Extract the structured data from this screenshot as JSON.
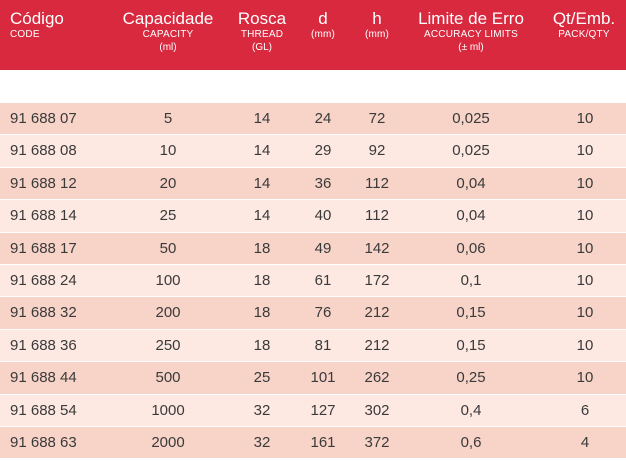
{
  "header": {
    "code": {
      "main": "Código",
      "sub": "CODE"
    },
    "capacity": {
      "main": "Capacidade",
      "sub": "CAPACITY",
      "sub2": "(ml)"
    },
    "thread": {
      "main": "Rosca",
      "sub": "THREAD",
      "sub2": "(GL)"
    },
    "d": {
      "main": "d",
      "sub": "(mm)"
    },
    "h": {
      "main": "h",
      "sub": "(mm)"
    },
    "error": {
      "main": "Limite de Erro",
      "sub": "ACCURACY LIMITS",
      "sub2": "(± ml)"
    },
    "qty": {
      "main": "Qt/Emb.",
      "sub": "PACK/QTY"
    }
  },
  "rows": [
    {
      "code": "91 688 07",
      "capacity": "5",
      "thread": "14",
      "d": "24",
      "h": "72",
      "error": "0,025",
      "qty": "10"
    },
    {
      "code": "91 688 08",
      "capacity": "10",
      "thread": "14",
      "d": "29",
      "h": "92",
      "error": "0,025",
      "qty": "10"
    },
    {
      "code": "91 688 12",
      "capacity": "20",
      "thread": "14",
      "d": "36",
      "h": "112",
      "error": "0,04",
      "qty": "10"
    },
    {
      "code": "91 688 14",
      "capacity": "25",
      "thread": "14",
      "d": "40",
      "h": "112",
      "error": "0,04",
      "qty": "10"
    },
    {
      "code": "91 688 17",
      "capacity": "50",
      "thread": "18",
      "d": "49",
      "h": "142",
      "error": "0,06",
      "qty": "10"
    },
    {
      "code": "91 688 24",
      "capacity": "100",
      "thread": "18",
      "d": "61",
      "h": "172",
      "error": "0,1",
      "qty": "10"
    },
    {
      "code": "91 688 32",
      "capacity": "200",
      "thread": "18",
      "d": "76",
      "h": "212",
      "error": "0,15",
      "qty": "10"
    },
    {
      "code": "91 688 36",
      "capacity": "250",
      "thread": "18",
      "d": "81",
      "h": "212",
      "error": "0,15",
      "qty": "10"
    },
    {
      "code": "91 688 44",
      "capacity": "500",
      "thread": "25",
      "d": "101",
      "h": "262",
      "error": "0,25",
      "qty": "10"
    },
    {
      "code": "91 688 54",
      "capacity": "1000",
      "thread": "32",
      "d": "127",
      "h": "302",
      "error": "0,4",
      "qty": "6"
    },
    {
      "code": "91 688 63",
      "capacity": "2000",
      "thread": "32",
      "d": "161",
      "h": "372",
      "error": "0,6",
      "qty": "4"
    }
  ],
  "colors": {
    "header_bg": "#d8293f",
    "row_odd": "#f7d3c8",
    "row_even": "#fde8e2",
    "text": "#3a3a3a"
  }
}
